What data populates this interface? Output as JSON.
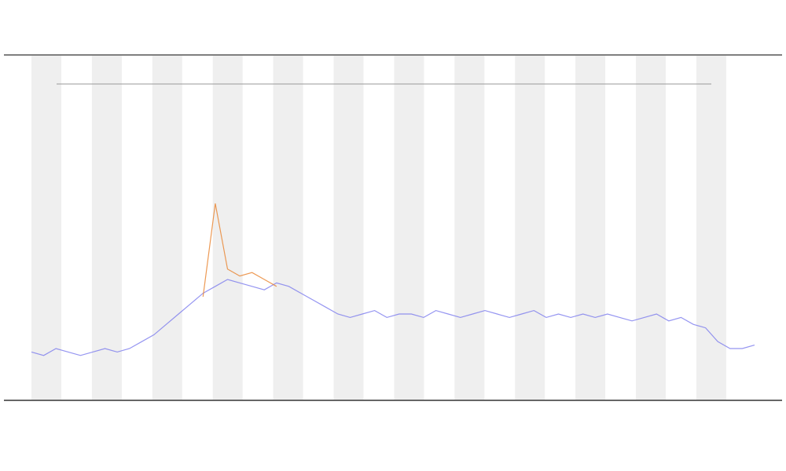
{
  "chart_data": {
    "type": "line",
    "x": [
      0,
      1,
      2,
      3,
      4,
      5,
      6,
      7,
      8,
      9,
      10,
      11,
      12,
      13,
      14,
      15,
      16,
      17,
      18,
      19,
      20,
      21,
      22,
      23,
      24,
      25,
      26,
      27,
      28,
      29,
      30,
      31,
      32,
      33,
      34,
      35,
      36,
      37,
      38,
      39,
      40,
      41,
      42,
      43,
      44,
      45,
      46,
      47,
      48,
      49,
      50,
      51,
      52,
      53,
      54,
      55,
      56,
      57,
      58,
      59
    ],
    "xlim": [
      0,
      59
    ],
    "ylim": [
      0,
      100
    ],
    "series": [
      {
        "color": "#7b7bee",
        "values": [
          14,
          13,
          15,
          14,
          13,
          14,
          15,
          14,
          15,
          17,
          19,
          22,
          25,
          28,
          31,
          33,
          35,
          34,
          33,
          32,
          34,
          33,
          31,
          29,
          27,
          25,
          24,
          25,
          26,
          24,
          25,
          25,
          24,
          26,
          25,
          24,
          25,
          26,
          25,
          24,
          25,
          26,
          24,
          25,
          24,
          25,
          24,
          25,
          24,
          23,
          24,
          25,
          23,
          24,
          22,
          21,
          17,
          15,
          15,
          16
        ]
      },
      {
        "color": "#e8812b",
        "values": [
          null,
          null,
          null,
          null,
          null,
          null,
          null,
          null,
          null,
          null,
          null,
          null,
          null,
          null,
          30,
          57,
          38,
          36,
          37,
          35,
          33,
          null,
          null,
          null,
          null,
          null,
          null,
          null,
          null,
          null,
          null,
          null,
          null,
          null,
          null,
          null,
          null,
          null,
          null,
          null,
          null,
          null,
          null,
          null,
          null,
          null,
          null,
          null,
          null,
          null,
          null,
          null,
          null,
          null,
          null,
          null,
          null,
          null,
          null,
          null
        ]
      }
    ]
  }
}
